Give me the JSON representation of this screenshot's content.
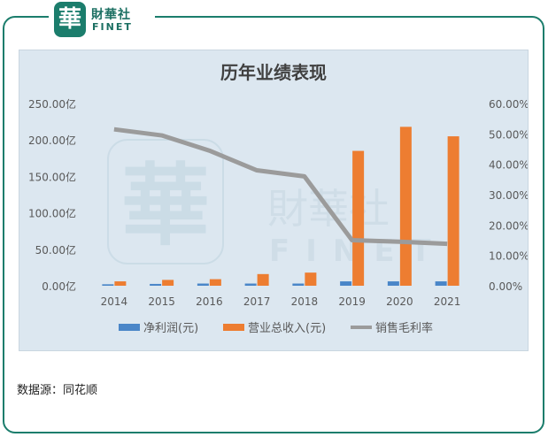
{
  "logo": {
    "badge": "華",
    "name_cn": "財華社",
    "name_en": "FINET"
  },
  "watermark": {
    "badge": "華",
    "name_cn": "財華社",
    "name_en": "FINET"
  },
  "source_text": "数据源：同花顺",
  "colors": {
    "frame": "#1b7d6c",
    "net_profit": "#4a86c8",
    "revenue": "#ed7d31",
    "margin": "#9b9b9b",
    "plot_bg": "#dce7f0"
  },
  "chart_data": {
    "type": "bar",
    "title": "历年业绩表现",
    "categories": [
      "2014",
      "2015",
      "2016",
      "2017",
      "2018",
      "2019",
      "2020",
      "2021"
    ],
    "y_left": {
      "ylim": [
        0,
        250
      ],
      "ticks": [
        0,
        50,
        100,
        150,
        200,
        250
      ],
      "tick_labels": [
        "0.00亿",
        "50.00亿",
        "100.00亿",
        "150.00亿",
        "200.00亿",
        "250.00亿"
      ]
    },
    "y_right": {
      "ylim": [
        0,
        60
      ],
      "ticks": [
        0,
        10,
        20,
        30,
        40,
        50,
        60
      ],
      "tick_labels": [
        "0.00%",
        "10.00%",
        "20.00%",
        "30.00%",
        "40.00%",
        "50.00%",
        "60.00%"
      ]
    },
    "series": [
      {
        "name": "净利润(元)",
        "type": "bar",
        "axis": "left",
        "values": [
          2,
          2.5,
          3,
          3,
          3,
          6,
          6,
          6
        ]
      },
      {
        "name": "营业总收入(元)",
        "type": "bar",
        "axis": "left",
        "values": [
          6,
          8,
          9,
          16,
          18,
          185,
          218,
          205
        ]
      },
      {
        "name": "销售毛利率",
        "type": "line",
        "axis": "right",
        "values": [
          51.5,
          49.5,
          44.5,
          38.0,
          36.0,
          15.0,
          14.5,
          13.8
        ]
      }
    ],
    "legend_position": "bottom",
    "grid": false
  }
}
